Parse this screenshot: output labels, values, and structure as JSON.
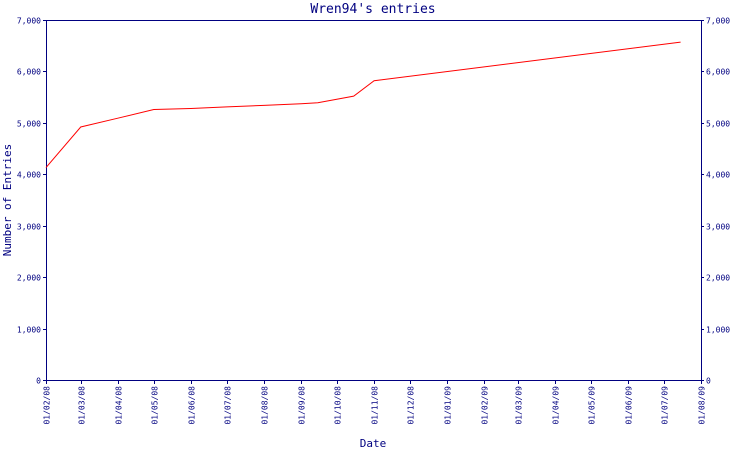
{
  "chart_data": {
    "type": "line",
    "title": "Wren94's entries",
    "xlabel": "Date",
    "ylabel": "Number of Entries",
    "ylim": [
      0,
      7000
    ],
    "y_ticks": [
      0,
      1000,
      2000,
      3000,
      4000,
      5000,
      6000,
      7000
    ],
    "y_tick_labels": [
      "0",
      "1,000",
      "2,000",
      "3,000",
      "4,000",
      "5,000",
      "6,000",
      "7,000"
    ],
    "y_axis_right": true,
    "grid": false,
    "xlim": [
      "2008-02-01",
      "2009-08-01"
    ],
    "x_ticks": [
      "2008-02-01",
      "2008-03-01",
      "2008-04-01",
      "2008-05-01",
      "2008-06-01",
      "2008-07-01",
      "2008-08-01",
      "2008-09-01",
      "2008-10-01",
      "2008-11-01",
      "2008-12-01",
      "2009-01-01",
      "2009-02-01",
      "2009-03-01",
      "2009-04-01",
      "2009-05-01",
      "2009-06-01",
      "2009-07-01",
      "2009-08-01"
    ],
    "x_tick_labels": [
      "01/02/08",
      "01/03/08",
      "01/04/08",
      "01/05/08",
      "01/06/08",
      "01/07/08",
      "01/08/08",
      "01/09/08",
      "01/10/08",
      "01/11/08",
      "01/12/08",
      "01/01/09",
      "01/02/09",
      "01/03/09",
      "01/04/09",
      "01/05/09",
      "01/06/09",
      "01/07/09",
      "01/08/09"
    ],
    "series": [
      {
        "color": "#ff0000",
        "x": [
          "2008-02-01",
          "2008-03-01",
          "2008-04-01",
          "2008-05-01",
          "2008-06-01",
          "2008-07-01",
          "2008-08-01",
          "2008-09-01",
          "2008-09-15",
          "2008-10-15",
          "2008-11-01",
          "2009-07-15"
        ],
        "values": [
          4130,
          4920,
          5090,
          5260,
          5280,
          5310,
          5340,
          5370,
          5390,
          5520,
          5820,
          6570
        ]
      }
    ]
  }
}
